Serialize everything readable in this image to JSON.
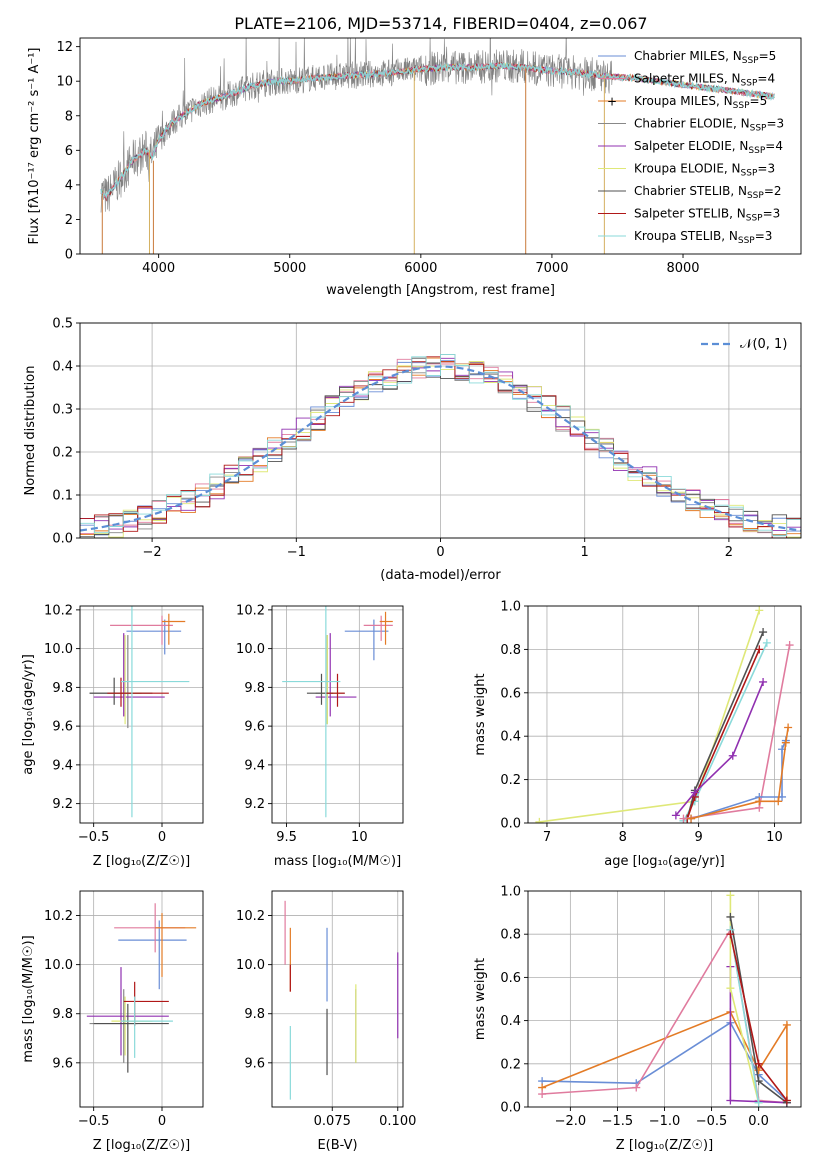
{
  "figure": {
    "title": "PLATE=2106, MJD=53714, FIBERID=0404, z=0.067"
  },
  "series_style": [
    {
      "name": "Chabrier MILES",
      "nssp": "5",
      "color": "#6a8ed6"
    },
    {
      "name": "Salpeter MILES",
      "nssp": "4",
      "color": "#e07b9e"
    },
    {
      "name": "Kroupa MILES",
      "nssp": "5",
      "color": "#e37b26"
    },
    {
      "name": "Chabrier ELODIE",
      "nssp": "3",
      "color": "#888888"
    },
    {
      "name": "Salpeter ELODIE",
      "nssp": "4",
      "color": "#9030b0"
    },
    {
      "name": "Kroupa ELODIE",
      "nssp": "3",
      "color": "#dfe878"
    },
    {
      "name": "Chabrier STELIB",
      "nssp": "2",
      "color": "#505050"
    },
    {
      "name": "Salpeter STELIB",
      "nssp": "3",
      "color": "#b01818"
    },
    {
      "name": "Kroupa STELIB",
      "nssp": "3",
      "color": "#8adada"
    }
  ],
  "chart_data": [
    {
      "id": "spectrum",
      "type": "line",
      "xlabel": "wavelength [Angstrom, rest frame]",
      "ylabel": "Flux [fλ10⁻¹⁷ erg cm⁻² s⁻¹ A⁻¹]",
      "xlim": [
        3400,
        8900
      ],
      "ylim": [
        0,
        12.5
      ],
      "xticks": [
        4000,
        5000,
        6000,
        7000,
        8000
      ],
      "yticks": [
        0,
        2,
        4,
        6,
        8,
        10,
        12
      ],
      "legend": "right",
      "continuum": {
        "x": [
          3560,
          3600,
          3700,
          3800,
          3900,
          3950,
          4000,
          4100,
          4200,
          4300,
          4400,
          4500,
          4600,
          4700,
          4800,
          4900,
          5000,
          5200,
          5400,
          5600,
          5800,
          6000,
          6200,
          6400,
          6600,
          6800,
          7000,
          7200,
          7400,
          7600,
          7800,
          8000,
          8200,
          8400,
          8600,
          8700
        ],
        "y": [
          3.6,
          3.3,
          4.3,
          5.4,
          6.0,
          5.6,
          6.6,
          7.6,
          8.1,
          8.6,
          8.9,
          9.1,
          9.4,
          9.7,
          9.9,
          10.0,
          10.0,
          10.2,
          10.3,
          10.4,
          10.5,
          10.7,
          10.8,
          10.8,
          10.9,
          10.8,
          10.6,
          10.5,
          10.3,
          10.2,
          10.0,
          9.8,
          9.6,
          9.4,
          9.2,
          9.1
        ]
      }
    },
    {
      "id": "residuals",
      "type": "bar",
      "xlabel": "(data-model)/error",
      "ylabel": "Normed distribution",
      "xlim": [
        -2.5,
        2.5
      ],
      "ylim": [
        0,
        0.5
      ],
      "xticks": [
        -2,
        -1,
        0,
        1,
        2
      ],
      "yticks": [
        0.0,
        0.1,
        0.2,
        0.3,
        0.4,
        0.5
      ],
      "legend": "top-right",
      "reference_label": "𝒩(0, 1)"
    },
    {
      "id": "age-vs-z",
      "type": "scatter",
      "xlabel": "Z [log₁₀(Z/Z☉)]",
      "ylabel": "age  [log₁₀(age/yr)]",
      "xlim": [
        -0.6,
        0.3
      ],
      "ylim": [
        9.1,
        10.22
      ],
      "xticks": [
        -0.5,
        0.0
      ],
      "yticks": [
        9.2,
        9.4,
        9.6,
        9.8,
        10.0,
        10.2
      ]
    },
    {
      "id": "age-vs-mass",
      "type": "scatter",
      "xlabel": "mass [log₁₀(M/M☉)]",
      "ylabel": "",
      "xlim": [
        9.4,
        10.3
      ],
      "ylim": [
        9.1,
        10.22
      ],
      "xticks": [
        9.5,
        10.0
      ],
      "yticks": [
        9.2,
        9.4,
        9.6,
        9.8,
        10.0,
        10.2
      ]
    },
    {
      "id": "weight-vs-age",
      "type": "line",
      "xlabel": "age  [log₁₀(age/yr)]",
      "ylabel": "mass weight",
      "xlim": [
        6.75,
        10.35
      ],
      "ylim": [
        0,
        1
      ],
      "xticks": [
        7,
        8,
        9,
        10
      ],
      "yticks": [
        0.0,
        0.2,
        0.4,
        0.6,
        0.8,
        1.0
      ]
    },
    {
      "id": "mass-vs-z",
      "type": "scatter",
      "xlabel": "Z [log₁₀(Z/Z☉)]",
      "ylabel": "mass [log₁₀(M/M☉)]",
      "xlim": [
        -0.6,
        0.3
      ],
      "ylim": [
        9.42,
        10.3
      ],
      "xticks": [
        -0.5,
        0.0
      ],
      "yticks": [
        9.6,
        9.8,
        10.0,
        10.2
      ]
    },
    {
      "id": "mass-vs-ebv",
      "type": "scatter",
      "xlabel": "E(B-V)",
      "ylabel": "",
      "xlim": [
        0.052,
        0.102
      ],
      "ylim": [
        9.42,
        10.3
      ],
      "xticks": [
        0.075,
        0.1
      ],
      "xticklabels": [
        "0.075",
        "0.100"
      ],
      "yticks": [
        9.6,
        9.8,
        10.0,
        10.2
      ]
    },
    {
      "id": "weight-vs-z",
      "type": "line",
      "xlabel": "Z [log₁₀(Z/Z☉)]",
      "ylabel": "mass weight",
      "xlim": [
        -2.45,
        0.45
      ],
      "ylim": [
        0,
        1
      ],
      "xticks": [
        -2.0,
        -1.5,
        -1.0,
        -0.5,
        0.0
      ],
      "xticklabels": [
        "−2.0",
        "−1.5",
        "−1.0",
        "−0.5",
        "0.0"
      ],
      "yticks": [
        0.0,
        0.2,
        0.4,
        0.6,
        0.8,
        1.0
      ]
    }
  ]
}
